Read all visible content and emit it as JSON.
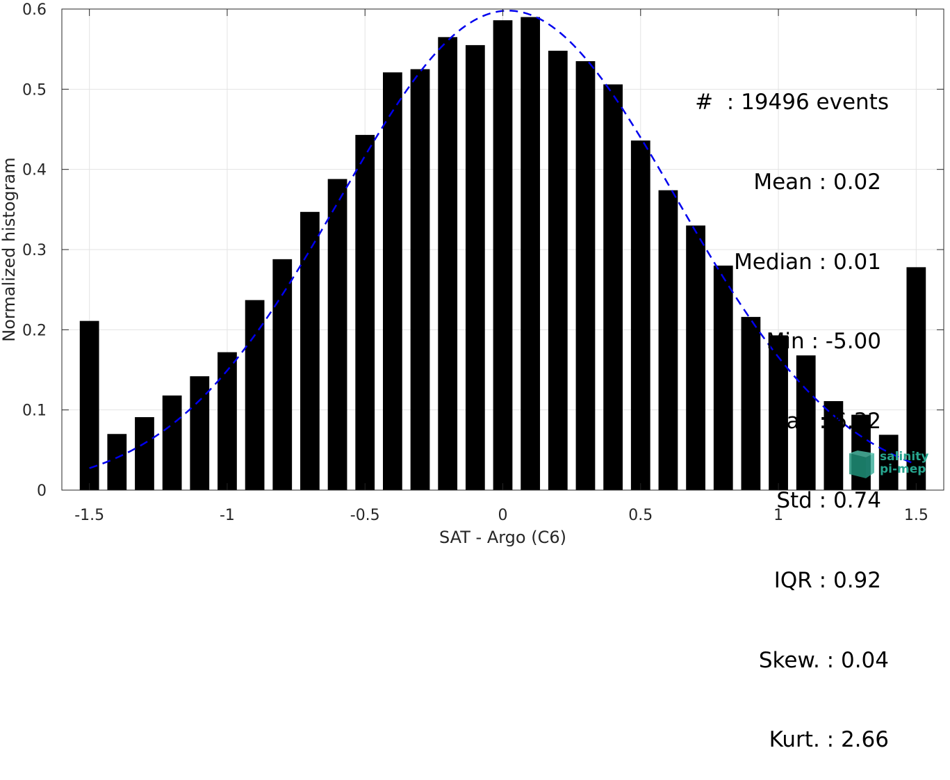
{
  "chart_data": {
    "type": "bar",
    "xlabel": "SAT - Argo (C6)",
    "ylabel": "Normalized histogram",
    "xlim": [
      -1.6,
      1.6
    ],
    "ylim": [
      0,
      0.6
    ],
    "x_ticks": [
      -1.5,
      -1,
      -0.5,
      0,
      0.5,
      1,
      1.5
    ],
    "x_tick_labels": [
      "-1.5",
      "-1",
      "-0.5",
      "0",
      "0.5",
      "1",
      "1.5"
    ],
    "y_ticks": [
      0,
      0.1,
      0.2,
      0.3,
      0.4,
      0.5,
      0.6
    ],
    "y_tick_labels": [
      "0",
      "0.1",
      "0.2",
      "0.3",
      "0.4",
      "0.5",
      "0.6"
    ],
    "grid": true,
    "bar_color": "#000000",
    "x": [
      -1.5,
      -1.4,
      -1.3,
      -1.2,
      -1.1,
      -1.0,
      -0.9,
      -0.8,
      -0.7,
      -0.6,
      -0.5,
      -0.4,
      -0.3,
      -0.2,
      -0.1,
      0.0,
      0.1,
      0.2,
      0.3,
      0.4,
      0.5,
      0.6,
      0.7,
      0.8,
      0.9,
      1.0,
      1.1,
      1.2,
      1.3,
      1.4,
      1.5
    ],
    "values": [
      0.211,
      0.07,
      0.091,
      0.118,
      0.142,
      0.172,
      0.237,
      0.288,
      0.347,
      0.388,
      0.443,
      0.521,
      0.525,
      0.565,
      0.555,
      0.586,
      0.59,
      0.548,
      0.535,
      0.506,
      0.436,
      0.374,
      0.33,
      0.28,
      0.216,
      0.193,
      0.168,
      0.111,
      0.094,
      0.069,
      0.278
    ],
    "fit_curve": {
      "type": "gaussian",
      "style": "dashed",
      "color": "#0000ee",
      "peak": 0.598,
      "mean": 0.02,
      "sigma": 0.612,
      "x_range": [
        -1.5,
        1.5
      ]
    }
  },
  "stats": {
    "events": "#  : 19496 events",
    "mean": "Mean : 0.02",
    "median": "Median : 0.01",
    "min": "Min : -5.00",
    "max": "Max : 6.32",
    "std": "Std : 0.74",
    "iqr": "IQR : 0.92",
    "skew": "Skew. : 0.04",
    "kurt": "Kurt. : 2.66"
  },
  "logo": {
    "line1": "salinity",
    "line2": "pi-mep",
    "color": "#27a58f"
  }
}
